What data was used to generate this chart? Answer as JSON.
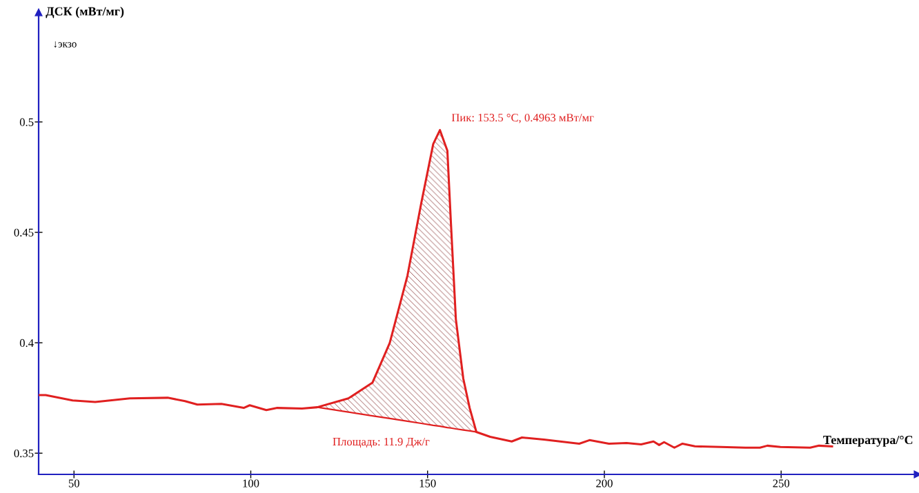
{
  "chart_data": {
    "type": "line",
    "xlabel": "Температура/°C",
    "ylabel": "ДСК (мВт/мг)",
    "xlim": [
      40,
      288.6
    ],
    "ylim": [
      0.3404,
      0.5496
    ],
    "xticks": [
      50,
      100,
      150,
      200,
      250
    ],
    "yticks": [
      0.35,
      0.4,
      0.45,
      0.5
    ],
    "grid": false,
    "line_style": "solid",
    "marker": "none",
    "series": [
      {
        "color": "#e02020",
        "x": [
          40.3,
          42,
          49.6,
          56,
          65.8,
          76.5,
          81.4,
          84.9,
          91.7,
          98,
          99.7,
          104.4,
          107.5,
          114.5,
          118.8,
          127.6,
          134.4,
          139.3,
          144.3,
          148.2,
          151.6,
          153.5,
          155.6,
          156.6,
          158,
          160.1,
          161.9,
          163.8,
          167.7,
          173.8,
          176.7,
          182.9,
          192.9,
          195.8,
          201.3,
          206.3,
          210.4,
          213.9,
          215.5,
          216.9,
          219.8,
          222.1,
          225.6,
          233,
          239.9,
          244,
          246.1,
          249.8,
          258.2,
          260.7,
          264.4
        ],
        "values": [
          0.3763,
          0.3763,
          0.3739,
          0.3732,
          0.3748,
          0.3751,
          0.3736,
          0.372,
          0.3723,
          0.3705,
          0.3717,
          0.3695,
          0.3705,
          0.3702,
          0.3708,
          0.3748,
          0.3819,
          0.3999,
          0.4303,
          0.4631,
          0.49,
          0.4963,
          0.487,
          0.4544,
          0.4107,
          0.3838,
          0.3705,
          0.3596,
          0.3574,
          0.3553,
          0.3571,
          0.3562,
          0.3543,
          0.3559,
          0.3543,
          0.3546,
          0.354,
          0.3553,
          0.3537,
          0.355,
          0.3525,
          0.3543,
          0.3531,
          0.3528,
          0.3525,
          0.3525,
          0.3534,
          0.3528,
          0.3525,
          0.3534,
          0.3531
        ]
      },
      {
        "type": "line",
        "color": "#e02020",
        "x": [
          118.8,
          127.6,
          134.4,
          139.3,
          144.3,
          148.2,
          151.6,
          153.5,
          155.6,
          156.6,
          158,
          160.1,
          161.9,
          163.8
        ],
        "values": [
          0.3708,
          0.3686,
          0.3669,
          0.3657,
          0.3645,
          0.3635,
          0.3626,
          0.3622,
          0.3616,
          0.3614,
          0.361,
          0.3605,
          0.3601,
          0.3596
        ]
      },
      {
        "type": "area",
        "color": "#8b3a3a",
        "x": [
          118.8,
          127.6,
          134.4,
          139.3,
          144.3,
          148.2,
          151.6,
          153.5,
          155.6,
          156.6,
          158,
          160.1,
          161.9,
          163.8
        ],
        "values": [
          0.3708,
          0.3748,
          0.3819,
          0.3999,
          0.4303,
          0.4631,
          0.49,
          0.4963,
          0.487,
          0.4544,
          0.4107,
          0.3838,
          0.3705,
          0.3596
        ]
      }
    ],
    "annotations": [
      {
        "text": "Пик: 153.5 °C, 0.4963 мВт/мг",
        "x": 153.5,
        "y": 0.4963
      },
      {
        "text": "Площадь: 11.9 Дж/г",
        "x": 145,
        "y": 0.3643
      },
      "↓экзо"
    ]
  }
}
